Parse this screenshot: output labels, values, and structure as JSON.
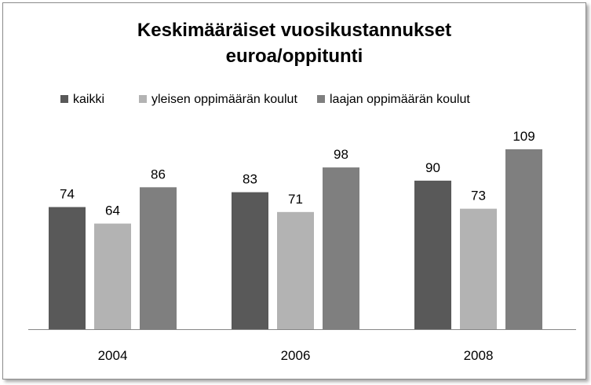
{
  "chart_data": {
    "type": "bar",
    "title": [
      "Keskimääräiset vuosikustannukset",
      "euroa/oppitunti"
    ],
    "categories": [
      "2004",
      "2006",
      "2008"
    ],
    "series": [
      {
        "name": "kaikki",
        "values": [
          74,
          83,
          90
        ],
        "color": "#595959"
      },
      {
        "name": "yleisen oppimäärän koulut",
        "values": [
          64,
          71,
          73
        ],
        "color": "#b3b3b3"
      },
      {
        "name": "laajan oppimäärän koulut",
        "values": [
          86,
          98,
          109
        ],
        "color": "#7f7f7f"
      }
    ],
    "ylim": [
      0,
      109
    ],
    "grid": false,
    "legend_position": "top",
    "axis_line_color": "#868686"
  }
}
